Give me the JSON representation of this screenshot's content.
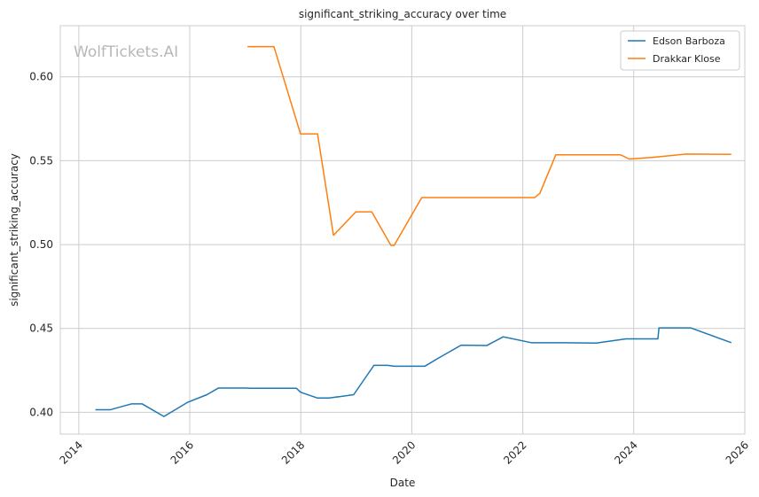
{
  "chart_data": {
    "type": "line",
    "title": "significant_striking_accuracy over time",
    "xlabel": "Date",
    "ylabel": "significant_striking_accuracy",
    "watermark": "WolfTickets.AI",
    "xlim": [
      "2013-09-01",
      "2026-01-01"
    ],
    "ylim": [
      0.387,
      0.6305
    ],
    "x_ticks": [
      {
        "value": "2014-01-01",
        "label": "2014"
      },
      {
        "value": "2016-01-01",
        "label": "2016"
      },
      {
        "value": "2018-01-01",
        "label": "2018"
      },
      {
        "value": "2020-01-01",
        "label": "2020"
      },
      {
        "value": "2022-01-01",
        "label": "2022"
      },
      {
        "value": "2024-01-01",
        "label": "2024"
      },
      {
        "value": "2026-01-01",
        "label": "2026"
      }
    ],
    "y_ticks": [
      {
        "value": 0.4,
        "label": "0.40"
      },
      {
        "value": 0.45,
        "label": "0.45"
      },
      {
        "value": 0.5,
        "label": "0.50"
      },
      {
        "value": 0.55,
        "label": "0.55"
      },
      {
        "value": 0.6,
        "label": "0.60"
      }
    ],
    "grid": true,
    "legend_position": "top-right",
    "series": [
      {
        "name": "Edson Barboza",
        "color": "#1f77b4",
        "points": [
          [
            "2014-04-20",
            0.4015
          ],
          [
            "2014-07-26",
            0.4015
          ],
          [
            "2014-12-13",
            0.405
          ],
          [
            "2015-02-22",
            0.405
          ],
          [
            "2015-07-15",
            0.3975
          ],
          [
            "2015-12-19",
            0.406
          ],
          [
            "2016-04-23",
            0.4105
          ],
          [
            "2016-07-08",
            0.4145
          ],
          [
            "2016-12-30",
            0.4145
          ],
          [
            "2017-02-11",
            0.4143
          ],
          [
            "2017-10-14",
            0.4143
          ],
          [
            "2017-12-03",
            0.4143
          ],
          [
            "2017-12-30",
            0.412
          ],
          [
            "2018-04-21",
            0.4085
          ],
          [
            "2018-07-06",
            0.4085
          ],
          [
            "2018-12-15",
            0.4105
          ],
          [
            "2019-04-27",
            0.428
          ],
          [
            "2019-07-27",
            0.428
          ],
          [
            "2019-09-07",
            0.4275
          ],
          [
            "2019-12-14",
            0.4275
          ],
          [
            "2020-03-28",
            0.4275
          ],
          [
            "2020-06-28",
            0.4325
          ],
          [
            "2020-11-21",
            0.44
          ],
          [
            "2021-05-08",
            0.4398
          ],
          [
            "2021-08-25",
            0.445
          ],
          [
            "2022-02-26",
            0.4415
          ],
          [
            "2022-07-16",
            0.4415
          ],
          [
            "2023-04-29",
            0.4413
          ],
          [
            "2023-11-11",
            0.4438
          ],
          [
            "2024-06-08",
            0.4438
          ],
          [
            "2024-06-15",
            0.4503
          ],
          [
            "2025-01-11",
            0.4503
          ],
          [
            "2025-10-04",
            0.4415
          ]
        ]
      },
      {
        "name": "Drakkar Klose",
        "color": "#ff7f0e",
        "points": [
          [
            "2017-01-15",
            0.618
          ],
          [
            "2017-07-08",
            0.618
          ],
          [
            "2017-12-30",
            0.566
          ],
          [
            "2018-04-21",
            0.566
          ],
          [
            "2018-08-04",
            0.5055
          ],
          [
            "2018-12-29",
            0.5195
          ],
          [
            "2019-04-13",
            0.5195
          ],
          [
            "2019-08-17",
            0.4995
          ],
          [
            "2019-09-07",
            0.4995
          ],
          [
            "2020-03-07",
            0.528
          ],
          [
            "2022-03-19",
            0.528
          ],
          [
            "2022-04-23",
            0.5305
          ],
          [
            "2022-08-06",
            0.5535
          ],
          [
            "2023-10-07",
            0.5535
          ],
          [
            "2023-12-02",
            0.551
          ],
          [
            "2024-05-04",
            0.552
          ],
          [
            "2024-12-14",
            0.554
          ],
          [
            "2025-10-04",
            0.5538
          ]
        ]
      }
    ]
  }
}
